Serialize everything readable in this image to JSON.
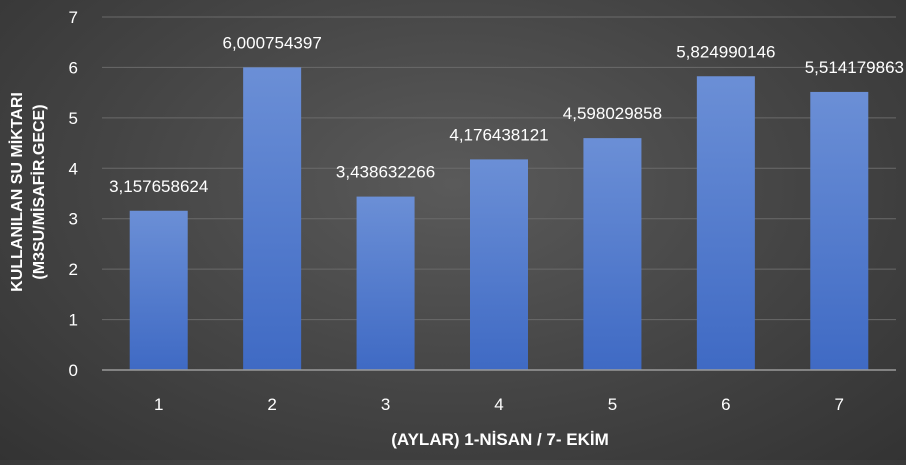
{
  "chart_data": {
    "type": "bar",
    "title": "",
    "xlabel": "(AYLAR) 1-NİSAN / 7- EKİM",
    "ylabel_line1": "KULLANILAN SU MİKTARI",
    "ylabel_line2": "(M3SU/MİSAFİR.GECE)",
    "categories": [
      "1",
      "2",
      "3",
      "4",
      "5",
      "6",
      "7"
    ],
    "values": [
      3.157658624,
      6.000754397,
      3.438632266,
      4.176438121,
      4.598029858,
      5.824990146,
      5.514179863
    ],
    "data_labels": [
      "3,157658624",
      "6,000754397",
      "3,438632266",
      "4,176438121",
      "4,598029858",
      "5,824990146",
      "5,514179863"
    ],
    "ylim": [
      0,
      7
    ],
    "yticks": [
      "0",
      "1",
      "2",
      "3",
      "4",
      "5",
      "6",
      "7"
    ],
    "grid": true,
    "legend": "none",
    "colors": {
      "bar_top": "#6b8fd6",
      "bar_bottom": "#3f6ac4",
      "text": "#ffffff",
      "grid": "#6a6a6a",
      "axis": "#9a9a9a"
    }
  }
}
